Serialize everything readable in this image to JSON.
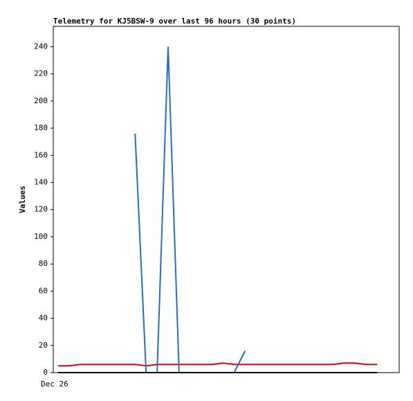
{
  "chart_data": {
    "type": "line",
    "title": "Telemetry for KJ5BSW-9 over last 96 hours (30 points)",
    "y_label": "Values",
    "categories": [
      "Dec 26",
      null,
      null,
      null,
      null,
      null,
      null,
      null,
      null,
      null,
      null,
      null,
      null,
      null,
      null,
      null,
      null,
      null,
      null,
      null,
      null,
      null,
      null,
      null,
      null,
      null,
      null,
      null,
      null,
      null
    ],
    "series": [
      {
        "color": "#e00000",
        "values": [
          5,
          5,
          6,
          6,
          6,
          6,
          6,
          6,
          5,
          6,
          6,
          6,
          6,
          6,
          6,
          7,
          6,
          6,
          6,
          6,
          6,
          6,
          6,
          6,
          6,
          6,
          7,
          7,
          6,
          6
        ]
      },
      {
        "color": "#1f6fc0",
        "values": [
          null,
          null,
          null,
          null,
          0,
          null,
          null,
          176,
          0,
          0,
          240,
          0,
          null,
          null,
          null,
          null,
          0,
          16,
          null,
          0,
          null,
          null,
          null,
          null,
          null,
          null,
          null,
          null,
          null,
          null
        ]
      },
      {
        "color": "#000000",
        "values": [
          0,
          0,
          0,
          0,
          0,
          0,
          0,
          0,
          0,
          0,
          0,
          0,
          0,
          0,
          0,
          0,
          0,
          0,
          0,
          0,
          0,
          0,
          0,
          0,
          0,
          0,
          0,
          0,
          0,
          0
        ]
      }
    ],
    "ylim": [
      0,
      255
    ],
    "yticks": [
      0,
      20,
      40,
      60,
      80,
      100,
      120,
      140,
      160,
      180,
      200,
      220,
      240
    ]
  }
}
